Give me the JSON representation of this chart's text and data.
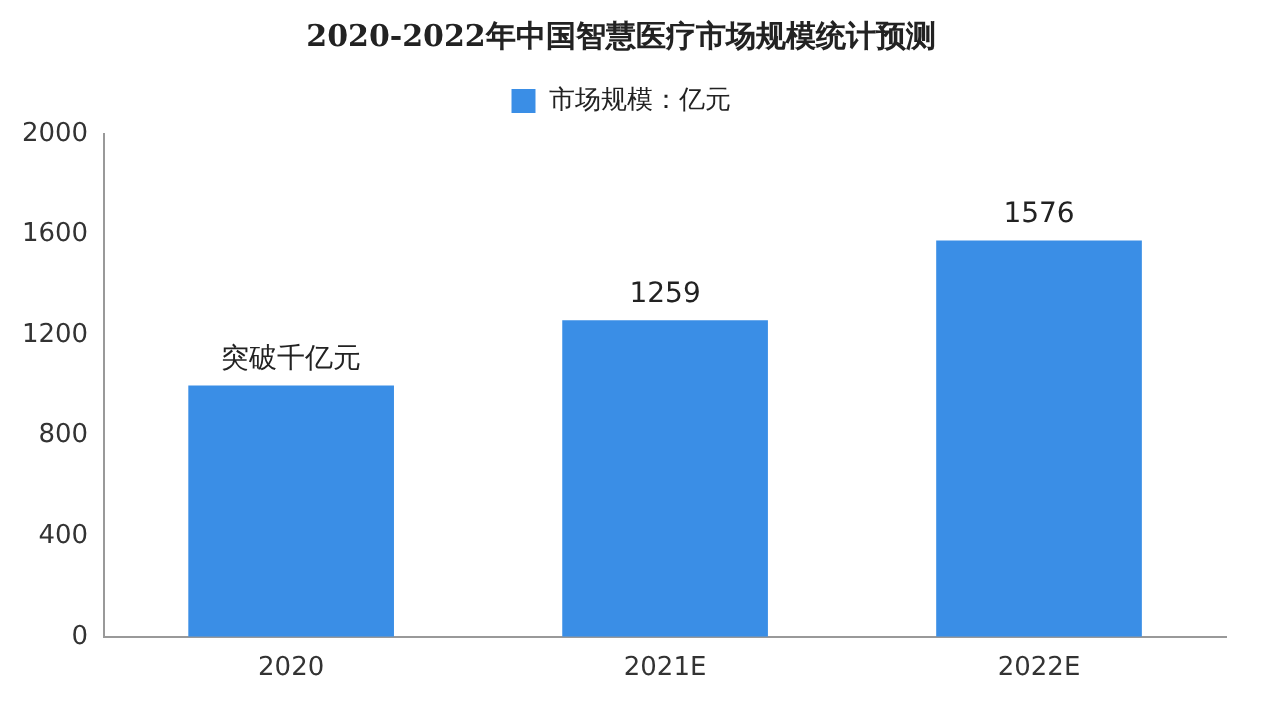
{
  "chart_data": {
    "type": "bar",
    "title": "2020-2022年中国智慧医疗市场规模统计预测",
    "categories": [
      "2020",
      "2021E",
      "2022E"
    ],
    "series": [
      {
        "name": "市场规模：亿元",
        "color": "#3a8ee6",
        "values": [
          1000,
          1259,
          1576
        ],
        "value_labels": [
          "突破千亿元",
          "1259",
          "1576"
        ]
      }
    ],
    "ylim": [
      0,
      2000
    ],
    "yticks": [
      0,
      400,
      800,
      1200,
      1600,
      2000
    ],
    "grid": false,
    "legend": "top"
  }
}
